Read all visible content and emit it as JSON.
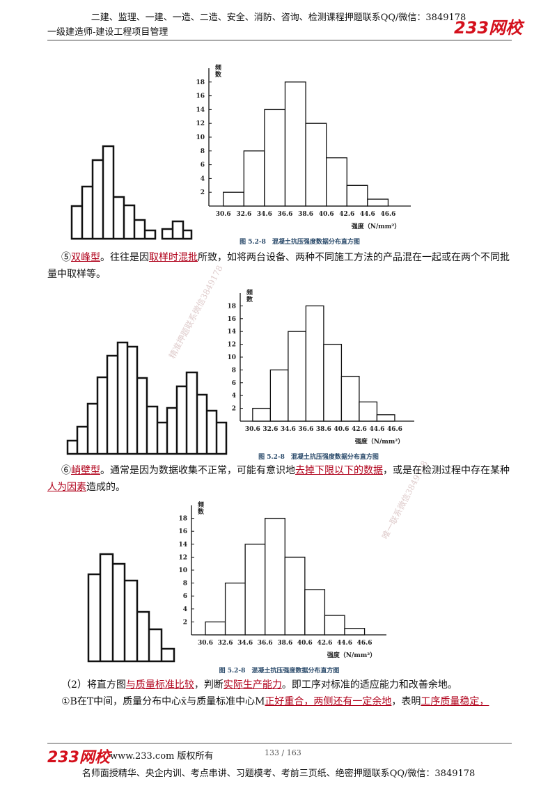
{
  "header": {
    "notice": "二建、监理、一建、一造、二造、安全、消防、咨询、检测课程押题联系QQ/微信：3849178",
    "subtitle": "一级建造师-建设工程项目管理",
    "logo": "233网校"
  },
  "chart_data": [
    {
      "type": "histogram",
      "ylabel": "频数",
      "xlabel": "强度（N/mm²）",
      "caption": "图 5.2-8　混凝土抗压强度数据分布直方图",
      "bins": [
        30.6,
        32.6,
        34.6,
        36.6,
        38.6,
        40.6,
        42.6,
        44.6,
        46.6
      ],
      "values": [
        2,
        8,
        14,
        18,
        12,
        7,
        3,
        1
      ],
      "xlim": [
        29.2,
        48.8
      ],
      "ylim": [
        0,
        20
      ],
      "yticks": [
        2,
        4,
        6,
        8,
        10,
        12,
        14,
        16,
        18
      ]
    },
    {
      "type": "histogram",
      "ylabel": "频数",
      "xlabel": "强度（N/mm²）",
      "caption": "图 5.2-8　混凝土抗压强度数据分布直方图",
      "bins": [
        30.6,
        32.6,
        34.6,
        36.6,
        38.6,
        40.6,
        42.6,
        44.6,
        46.6
      ],
      "values": [
        2,
        8,
        14,
        18,
        12,
        7,
        3,
        1
      ],
      "xlim": [
        29.2,
        48.8
      ],
      "ylim": [
        0,
        20
      ],
      "yticks": [
        2,
        4,
        6,
        8,
        10,
        12,
        14,
        16,
        18
      ]
    },
    {
      "type": "histogram",
      "ylabel": "频数",
      "xlabel": "强度（N/mm²）",
      "caption": "图 5.2-8　混凝土抗压强度数据分布直方图",
      "bins": [
        30.6,
        32.6,
        34.6,
        36.6,
        38.6,
        40.6,
        42.6,
        44.6,
        46.6
      ],
      "values": [
        2,
        8,
        14,
        18,
        12,
        7,
        3,
        1
      ],
      "xlim": [
        29.2,
        48.8
      ],
      "ylim": [
        0,
        20
      ],
      "yticks": [
        2,
        4,
        6,
        8,
        10,
        12,
        14,
        16,
        18
      ]
    }
  ],
  "paragraphs": [
    [
      {
        "text": "⑤"
      },
      {
        "text": "双峰型",
        "underline": true
      },
      {
        "text": "。往往是因"
      },
      {
        "text": "取样时混批",
        "underline": true
      },
      {
        "text": "所致，如将两台设备、两种不同施工方法的产品混在一起或在两个不同批量中取样等。"
      }
    ],
    [
      {
        "text": "⑥"
      },
      {
        "text": "峭壁型",
        "underline": true
      },
      {
        "text": "。通常是因为数据收集不正常，可能有意识地"
      },
      {
        "text": "去掉下限以下的数据",
        "underline": true
      },
      {
        "text": "，或是在检测过程中存在某种"
      },
      {
        "text": "人为因素",
        "underline": true
      },
      {
        "text": "造成的。"
      }
    ],
    [
      {
        "text": "（2）将直方图"
      },
      {
        "text": "与质量标准比较",
        "underline": true
      },
      {
        "text": "，判断"
      },
      {
        "text": "实际生产能力",
        "underline": true
      },
      {
        "text": "。即工序对标准的适应能力和改善余地。"
      }
    ],
    [
      {
        "text": "①B在T中间，质量分布中心x̄与质量标准中心M"
      },
      {
        "text": "正好重合，两侧还有一定余地",
        "underline": true
      },
      {
        "text": "，表明"
      },
      {
        "text": "工序质量稳定，",
        "underline": true
      }
    ]
  ],
  "watermarks": [
    "精准押题联系微信3849178",
    "唯一联系微信3849178"
  ],
  "footer": {
    "logo": "233网校",
    "copyright": "www.233.com 版权所有",
    "page": "133 / 163",
    "notice": "名师面授精华、央企内训、考点串讲、习题模考、考前三页纸、绝密押题联系QQ/微信：3849178"
  }
}
